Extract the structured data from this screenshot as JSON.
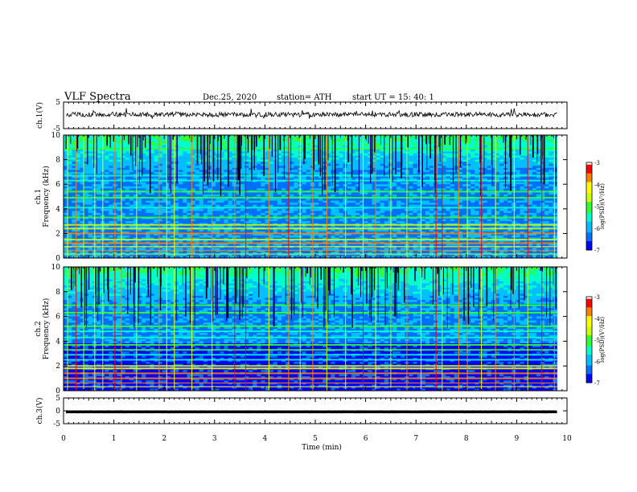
{
  "header": {
    "title": "VLF Spectra",
    "date": "Dec.25, 2020",
    "station": "station= ATH",
    "start": "start  UT  =   15: 40: 1"
  },
  "chart_data": [
    {
      "type": "line",
      "ylabel": "ch.1(V)",
      "ylim": [
        -5,
        5
      ],
      "yticks": [
        "5",
        "-5"
      ],
      "baseline": 0.3,
      "noise": 0.35
    },
    {
      "type": "heatmap",
      "ylabel_top": "ch.1",
      "ylabel": "Frequency (kHz)",
      "ylim": [
        0,
        10
      ],
      "yticks": [
        "0",
        "2",
        "4",
        "6",
        "8",
        "10"
      ],
      "colorbar": {
        "label": "log(PSD)(V²/Hz)",
        "range": [
          -7,
          -3
        ],
        "ticks": [
          "-3",
          "-4",
          "-5",
          "-6",
          "-7"
        ]
      },
      "bands_khz": [
        0.3,
        0.6,
        0.9,
        1.2,
        1.5,
        2.0,
        2.4,
        2.7,
        3.3,
        4.1,
        4.9,
        5.4,
        6.3,
        6.7,
        8.9
      ],
      "seed": 11
    },
    {
      "type": "heatmap",
      "ylabel_top": "ch.2",
      "ylabel": "Frequency (kHz)",
      "ylim": [
        0,
        10
      ],
      "yticks": [
        "0",
        "2",
        "4",
        "6",
        "8",
        "10"
      ],
      "colorbar": {
        "label": "log(PSD)(V²/Hz)",
        "range": [
          -7,
          -3
        ],
        "ticks": [
          "-3",
          "-4",
          "-5",
          "-6",
          "-7"
        ]
      },
      "bands_khz": [
        0.3,
        0.6,
        1.0,
        1.4,
        1.8,
        2.0,
        2.5,
        2.9,
        3.3,
        3.7,
        4.3,
        4.8,
        5.2,
        6.3,
        6.9,
        9.1
      ],
      "seed": 23
    },
    {
      "type": "line",
      "ylabel": "ch.3(V)",
      "ylim": [
        -5,
        5
      ],
      "yticks": [
        "5",
        "0",
        "-5"
      ],
      "baseline": -0.4,
      "noise": 0.02
    }
  ],
  "xaxis": {
    "label": "Time (min)",
    "range": [
      0,
      10
    ],
    "ticks": [
      "0",
      "1",
      "2",
      "3",
      "4",
      "5",
      "6",
      "7",
      "8",
      "9",
      "10"
    ],
    "data_end_min": 9.8
  },
  "colors": {
    "frame": "#000000",
    "colormap": [
      "#00007a",
      "#0000ff",
      "#0070ff",
      "#00c0ff",
      "#00ffcc",
      "#33ff33",
      "#ccff00",
      "#ffff00",
      "#ff8000",
      "#ff0000",
      "#ffffff"
    ]
  },
  "sferics_min": [
    0.08,
    0.25,
    0.4,
    0.62,
    0.78,
    1.02,
    1.15,
    1.45,
    1.9,
    2.05,
    2.2,
    2.55,
    2.95,
    3.4,
    3.62,
    4.08,
    4.47,
    4.7,
    4.95,
    5.23,
    5.6,
    5.95,
    6.2,
    6.5,
    6.82,
    7.1,
    7.4,
    7.52,
    7.85,
    8.02,
    8.3,
    8.58,
    8.95,
    9.22,
    9.5,
    9.75
  ]
}
